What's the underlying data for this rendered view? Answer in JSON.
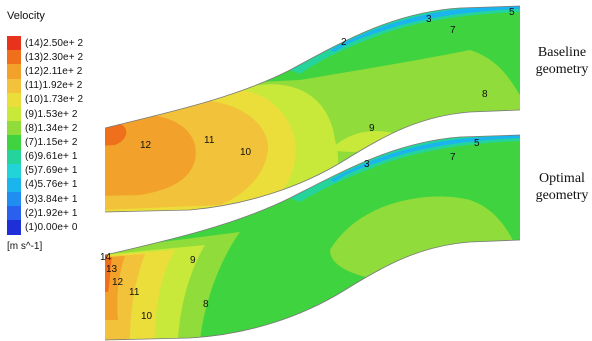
{
  "legend": {
    "title": "Velocity",
    "unit": "[m s^-1]",
    "levels": [
      {
        "label": "(14)2.50e+ 2",
        "color": "#e8331c"
      },
      {
        "label": "(13)2.30e+ 2",
        "color": "#f06f1a"
      },
      {
        "label": "(12)2.11e+ 2",
        "color": "#f2a12a"
      },
      {
        "label": "(11)1.92e+ 2",
        "color": "#f2c23a"
      },
      {
        "label": "(10)1.73e+ 2",
        "color": "#ecde3a"
      },
      {
        "label": "(9)1.53e+ 2",
        "color": "#c8e83a"
      },
      {
        "label": "(8)1.34e+ 2",
        "color": "#8fdc3a"
      },
      {
        "label": "(7)1.15e+ 2",
        "color": "#3fd43f"
      },
      {
        "label": "(6)9.61e+ 1",
        "color": "#25d49a"
      },
      {
        "label": "(5)7.69e+ 1",
        "color": "#22d4d8"
      },
      {
        "label": "(4)5.76e+ 1",
        "color": "#1ab4ee"
      },
      {
        "label": "(3)3.84e+ 1",
        "color": "#1f8ef0"
      },
      {
        "label": "(2)1.92e+ 1",
        "color": "#2a60ee"
      },
      {
        "label": "(1)0.00e+ 0",
        "color": "#1f2fd8"
      }
    ]
  },
  "geometry_labels": {
    "baseline": "Baseline geometry",
    "optimal": "Optimal geometry"
  },
  "contour_labels": {
    "baseline": [
      "2",
      "3",
      "5",
      "7",
      "8",
      "9",
      "10",
      "11",
      "12"
    ],
    "optimal": [
      "3",
      "5",
      "7",
      "8",
      "9",
      "10",
      "11",
      "12",
      "13",
      "14"
    ]
  }
}
